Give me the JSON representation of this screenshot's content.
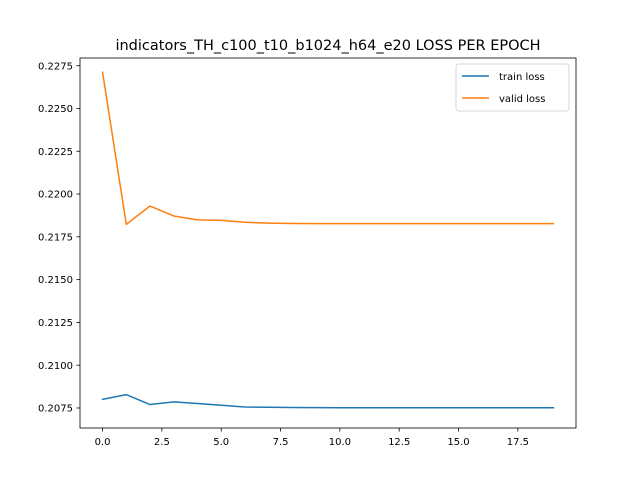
{
  "chart_data": {
    "type": "line",
    "title": "indicators_TH_c100_t10_b1024_h64_e20 LOSS PER EPOCH",
    "xlabel": "",
    "ylabel": "",
    "xlim": [
      -0.95,
      19.95
    ],
    "ylim": [
      0.20633,
      0.22795
    ],
    "xticks": [
      0.0,
      2.5,
      5.0,
      7.5,
      10.0,
      12.5,
      15.0,
      17.5
    ],
    "xtick_labels": [
      "0.0",
      "2.5",
      "5.0",
      "7.5",
      "10.0",
      "12.5",
      "15.0",
      "17.5"
    ],
    "yticks": [
      0.2075,
      0.21,
      0.2125,
      0.215,
      0.2175,
      0.22,
      0.2225,
      0.225,
      0.2275
    ],
    "ytick_labels": [
      "0.2075",
      "0.2100",
      "0.2125",
      "0.2150",
      "0.2175",
      "0.2200",
      "0.2225",
      "0.2250",
      "0.2275"
    ],
    "grid": false,
    "legend_position": "top-right",
    "x": [
      0,
      1,
      2,
      3,
      4,
      5,
      6,
      7,
      8,
      9,
      10,
      11,
      12,
      13,
      14,
      15,
      16,
      17,
      18,
      19
    ],
    "series": [
      {
        "name": "train loss",
        "color": "#1f77b4",
        "values": [
          0.208,
          0.20828,
          0.2077,
          0.20786,
          0.20776,
          0.20766,
          0.20756,
          0.20754,
          0.20753,
          0.20752,
          0.20751,
          0.20751,
          0.20751,
          0.20751,
          0.20751,
          0.20751,
          0.20751,
          0.20751,
          0.20751,
          0.20751
        ]
      },
      {
        "name": "valid loss",
        "color": "#ff7f0e",
        "values": [
          0.22712,
          0.21823,
          0.2193,
          0.21872,
          0.21849,
          0.21846,
          0.21835,
          0.2183,
          0.21828,
          0.21827,
          0.21827,
          0.21827,
          0.21827,
          0.21827,
          0.21827,
          0.21827,
          0.21827,
          0.21827,
          0.21827,
          0.21827
        ]
      }
    ]
  }
}
